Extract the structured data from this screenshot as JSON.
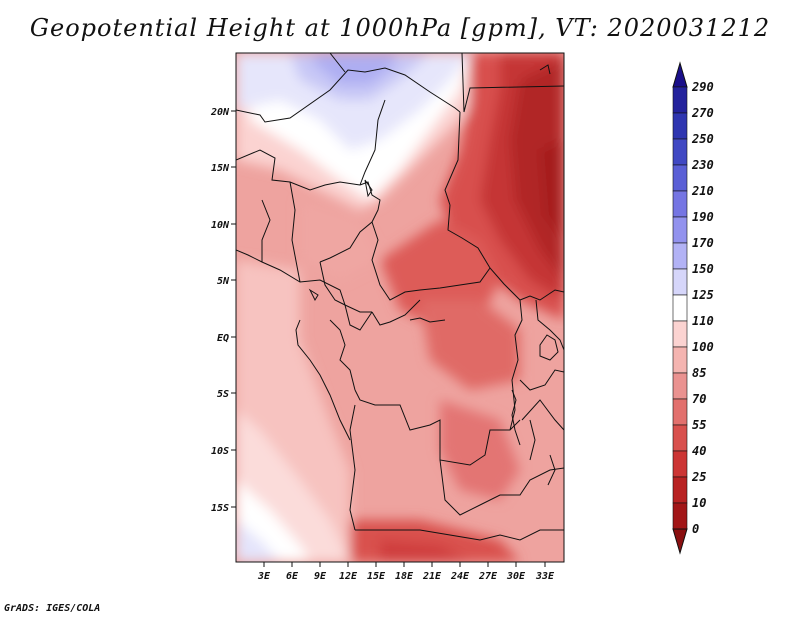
{
  "title": "Geopotential Height at 1000hPa [gpm], VT: 2020031212",
  "credit": "GrADS: IGES/COLA",
  "map": {
    "region": "Central Africa",
    "variable": "Geopotential Height",
    "level": "1000hPa",
    "units": "gpm",
    "valid_time": "2020031212",
    "lon_labels": [
      "3E",
      "6E",
      "9E",
      "12E",
      "15E",
      "18E",
      "21E",
      "24E",
      "27E",
      "30E",
      "33E"
    ],
    "lat_labels": [
      "20N",
      "15N",
      "10N",
      "5N",
      "EQ",
      "5S",
      "10S",
      "15S"
    ]
  },
  "colorbar": {
    "levels": [
      "290",
      "270",
      "250",
      "230",
      "210",
      "190",
      "170",
      "150",
      "125",
      "110",
      "100",
      "85",
      "70",
      "55",
      "40",
      "25",
      "10",
      "0"
    ],
    "colors": [
      "#1a0f8a",
      "#23229c",
      "#2e35b0",
      "#4048c3",
      "#5a5fd6",
      "#7575e3",
      "#9292ee",
      "#b2b2f5",
      "#d6d6fa",
      "#ffffff",
      "#fbd3d1",
      "#f4b4b0",
      "#ea9290",
      "#e2706d",
      "#d8504d",
      "#cc3534",
      "#b82222",
      "#a21617",
      "#8a0f10"
    ]
  }
}
